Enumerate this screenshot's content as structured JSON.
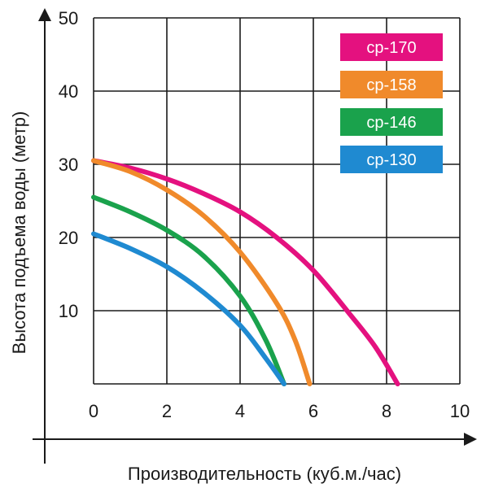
{
  "chart_data": {
    "type": "line",
    "title": "",
    "xlabel": "Производительность (куб.м./час)",
    "ylabel": "Высота подъема воды (метр)",
    "xlim": [
      0,
      10
    ],
    "ylim": [
      0,
      50
    ],
    "x_ticks": [
      "0",
      "2",
      "4",
      "6",
      "8",
      "10"
    ],
    "y_ticks": [
      "10",
      "20",
      "30",
      "40",
      "50"
    ],
    "grid": true,
    "legend_position": "top-right",
    "series": [
      {
        "name": "cp-170",
        "color": "#e4117f",
        "x": [
          0,
          1,
          2,
          3,
          4,
          5,
          6,
          7,
          7.7,
          8.3
        ],
        "y": [
          30.5,
          29.5,
          28,
          26,
          23.5,
          20,
          15.5,
          9.5,
          5,
          0
        ]
      },
      {
        "name": "cp-158",
        "color": "#f08a2b",
        "x": [
          0,
          1,
          2,
          3,
          4,
          5,
          5.5,
          5.9
        ],
        "y": [
          30.5,
          29,
          26.5,
          23,
          18,
          11,
          6,
          0
        ]
      },
      {
        "name": "cp-146",
        "color": "#1aa24c",
        "x": [
          0,
          1,
          2,
          3,
          4,
          4.7,
          5.2
        ],
        "y": [
          25.5,
          23.5,
          21,
          17.5,
          12,
          6,
          0
        ]
      },
      {
        "name": "cp-130",
        "color": "#1f8ad1",
        "x": [
          0,
          1,
          2,
          3,
          4,
          4.7,
          5.2
        ],
        "y": [
          20.5,
          18.5,
          16,
          12.5,
          8,
          3.5,
          0
        ]
      }
    ]
  }
}
